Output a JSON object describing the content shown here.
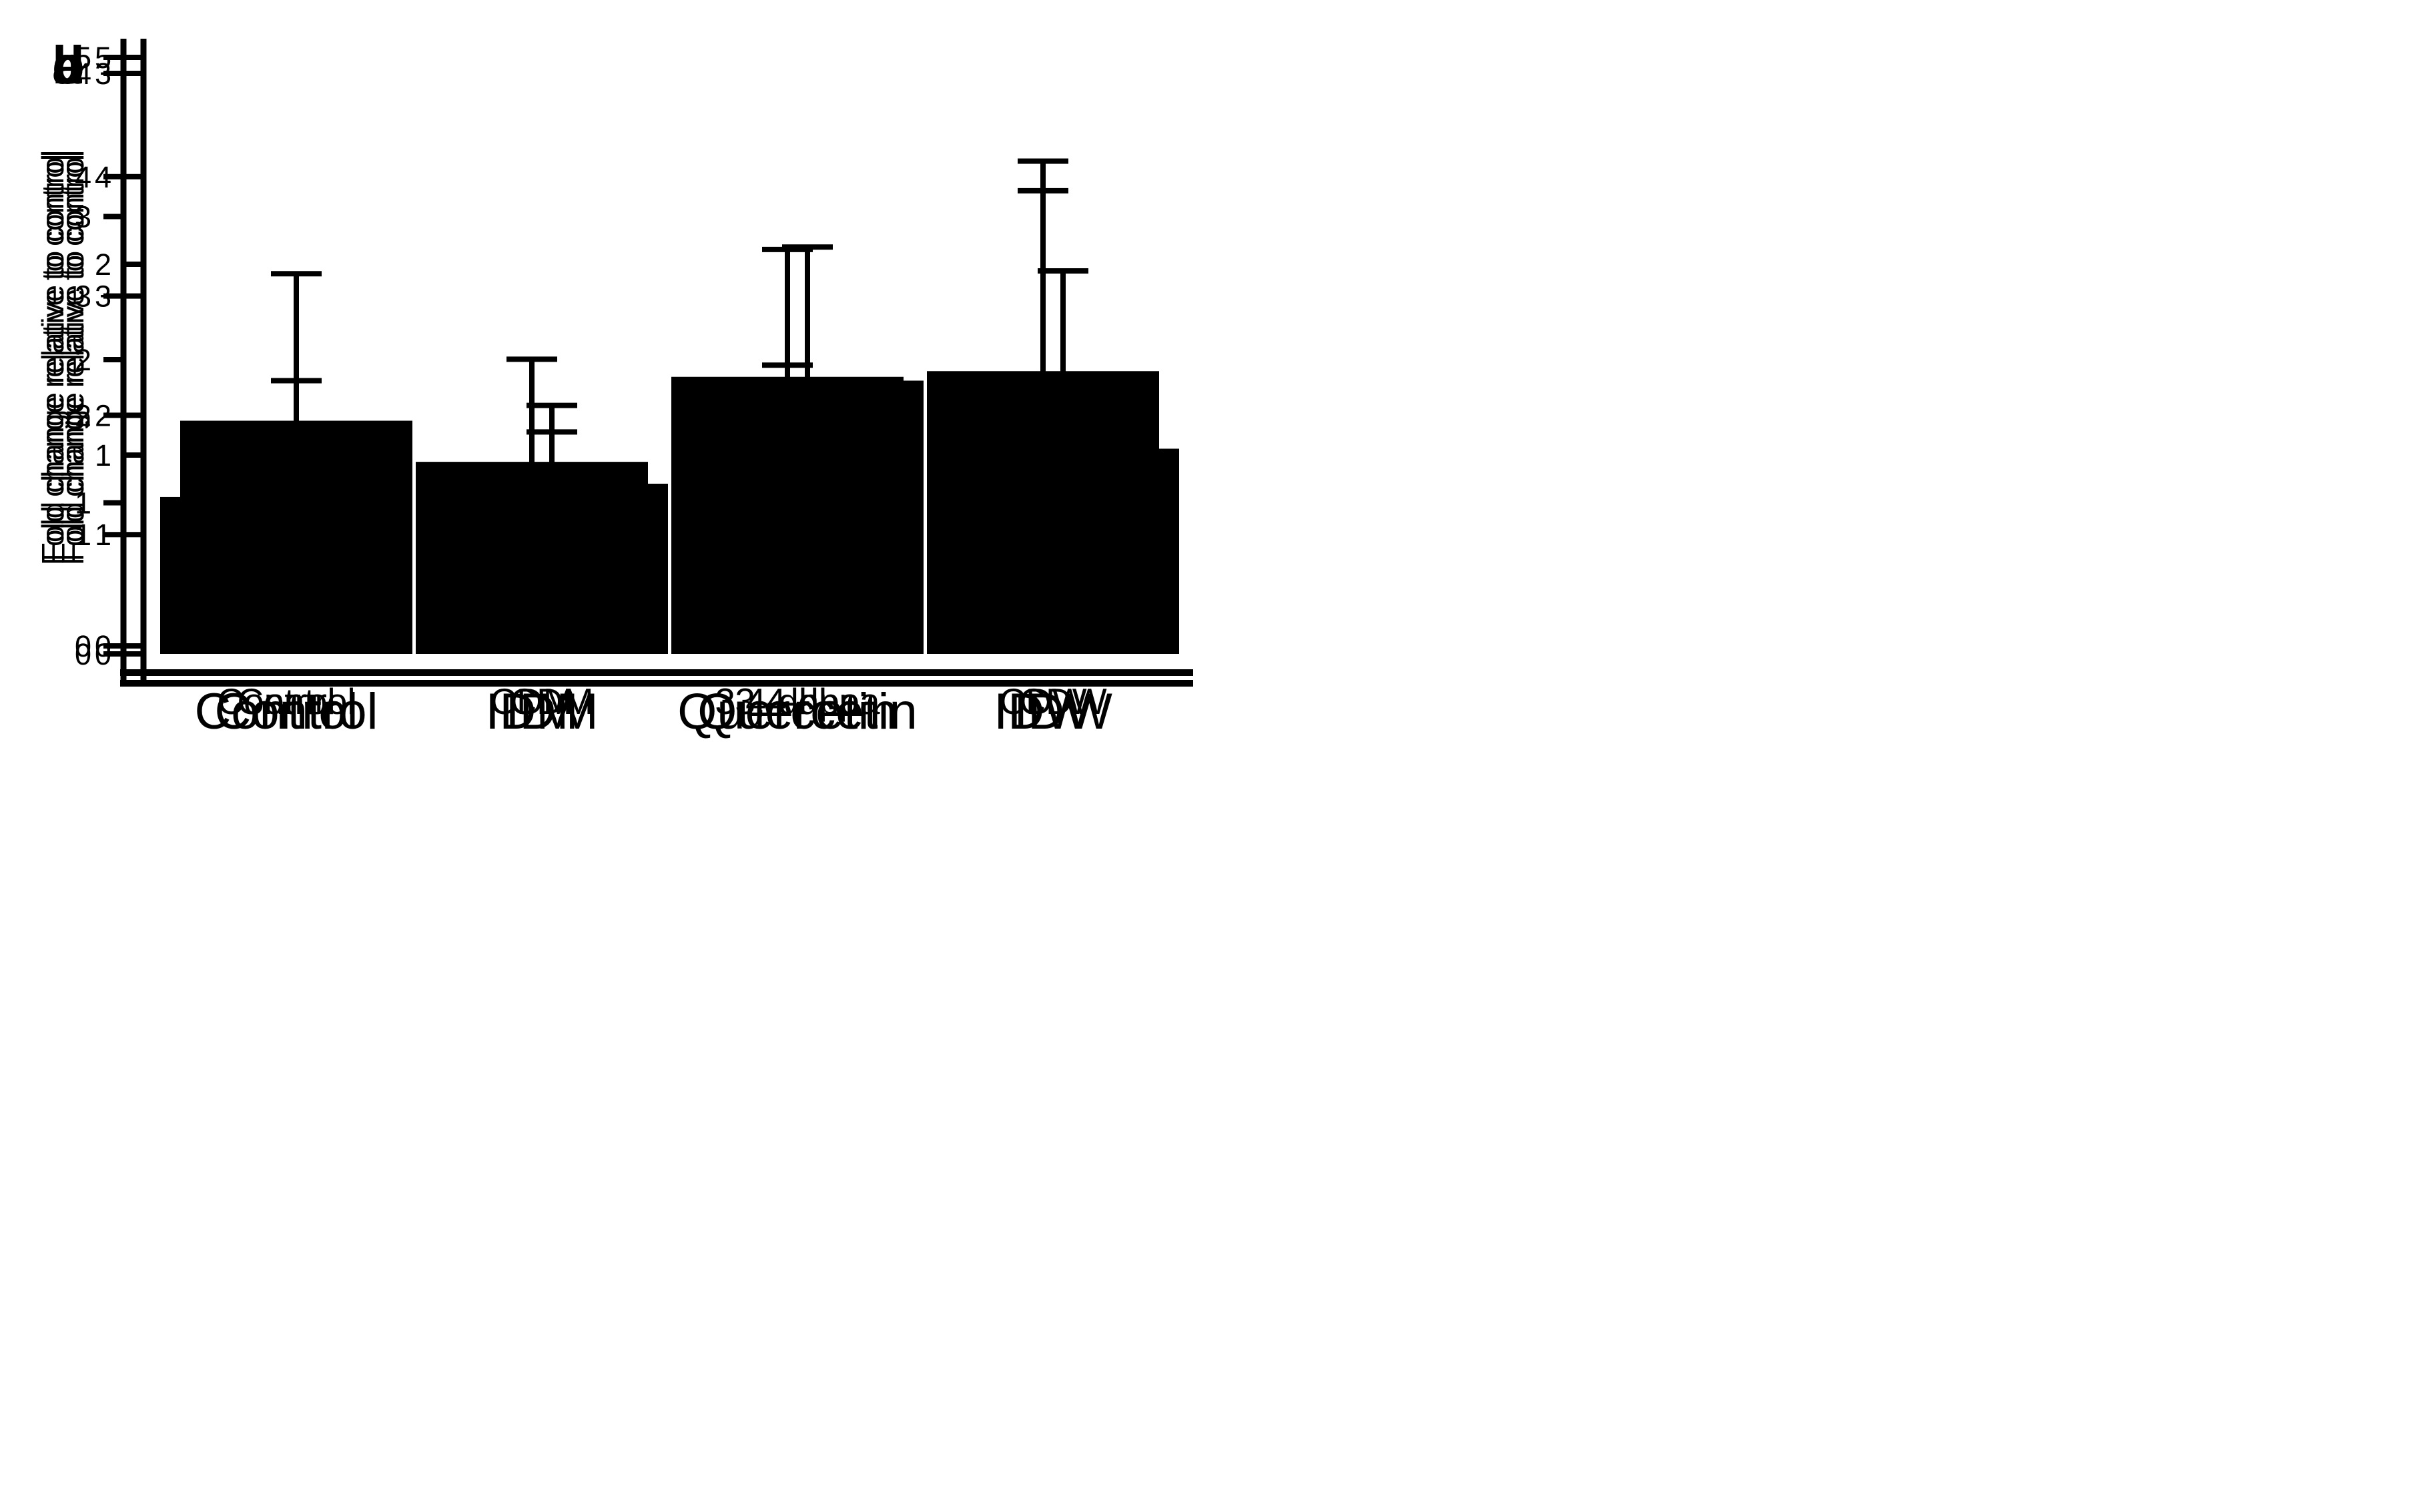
{
  "figure": {
    "background_color": "#ffffff",
    "bar_color": "#000000",
    "axis_color": "#000000",
    "text_color": "#000000"
  },
  "chart_data": [
    {
      "type": "bar",
      "panel_label": "a",
      "categories": [
        "Control",
        "IDM",
        "Quercetin",
        "IDW"
      ],
      "values": [
        1.18,
        0.85,
        1.39,
        0.66
      ],
      "error_bar_tops": [
        1.95,
        1.26,
        2.09,
        1.22
      ],
      "title": "",
      "xlabel": "",
      "ylabel": "Fold change relative to control",
      "ylim": [
        0,
        3
      ],
      "yticks": [
        0,
        1,
        2,
        3
      ],
      "grid": false,
      "legend_position": "none",
      "error_bars": "upper whisker with cap"
    },
    {
      "type": "bar",
      "panel_label": "b",
      "categories": [
        "Control",
        "IDM",
        "Quercetin",
        "IDW"
      ],
      "values": [
        1.04,
        0.78,
        1.88,
        1.63
      ],
      "error_bar_tops": [
        1.38,
        1.08,
        2.77,
        3.18
      ],
      "title": "",
      "xlabel": "",
      "ylabel": "Fold change relative to control",
      "ylim": [
        0,
        4
      ],
      "yticks": [
        0,
        1,
        2,
        3,
        4
      ],
      "grid": false,
      "legend_position": "none",
      "error_bars": "upper whisker with cap"
    },
    {
      "type": "bar",
      "panel_label": "c",
      "categories": [
        "Control",
        "CDM",
        "3,4-dhpa",
        "CDW"
      ],
      "values": [
        1.3,
        1.28,
        0.78,
        1.72
      ],
      "error_bar_tops": [
        2.29,
        1.86,
        1.13,
        3.21
      ],
      "title": "",
      "xlabel": "",
      "ylabel": "Fold change relative to control",
      "ylim": [
        0,
        5
      ],
      "yticks": [
        0,
        1,
        2,
        3,
        4,
        5
      ],
      "grid": false,
      "legend_position": "none",
      "error_bars": "upper whisker with cap"
    },
    {
      "type": "bar",
      "panel_label": "d",
      "categories": [
        "Control",
        "CDM",
        "3,4-dhpa",
        "CDW"
      ],
      "values": [
        1.1,
        1.61,
        1.23,
        2.37
      ],
      "error_bar_tops": [
        1.6,
        2.47,
        2.42,
        4.13
      ],
      "title": "",
      "xlabel": "",
      "ylabel": "Fold change relative to control",
      "ylim": [
        0,
        5
      ],
      "yticks": [
        0,
        1,
        2,
        3,
        4,
        5
      ],
      "grid": false,
      "legend_position": "none",
      "error_bars": "upper whisker with cap"
    }
  ]
}
